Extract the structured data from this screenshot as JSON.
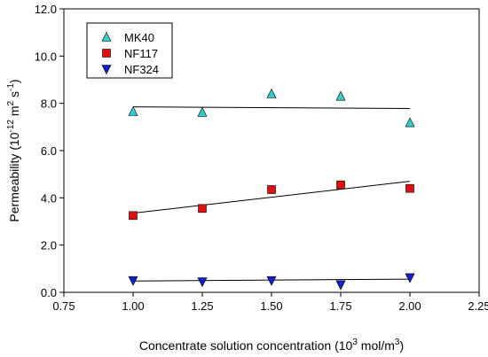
{
  "chart_data": {
    "type": "scatter",
    "xlabel": "Concentrate solution concentration (10",
    "xlabel_sup": "3",
    "xlabel_tail": " mol/m",
    "xlabel_sup2": "3",
    "xlabel_end": ")",
    "ylabel": "Permeability  (10",
    "ylabel_sup1": "-12",
    "ylabel_mid": " m",
    "ylabel_sup2": "2",
    "ylabel_mid2": " s",
    "ylabel_sup3": "-1",
    "ylabel_end": ")",
    "xlim": [
      0.75,
      2.25
    ],
    "ylim": [
      0.0,
      12.0
    ],
    "xticks": [
      0.75,
      1.0,
      1.25,
      1.5,
      1.75,
      2.0,
      2.25
    ],
    "xtick_labels": [
      "0.75",
      "1.00",
      "1.25",
      "1.50",
      "1.75",
      "2.00",
      "2.25"
    ],
    "yticks": [
      0,
      2,
      4,
      6,
      8,
      10,
      12
    ],
    "ytick_labels": [
      "0.0",
      "2.0",
      "4.0",
      "6.0",
      "8.0",
      "10.0",
      "12.0"
    ],
    "grid": false,
    "legend_position": "top-left",
    "series": [
      {
        "name": "MK40",
        "marker": "triangle-up",
        "color": "#33cccc",
        "x": [
          1.0,
          1.25,
          1.5,
          1.75,
          2.0
        ],
        "y": [
          7.65,
          7.62,
          8.4,
          8.3,
          7.18
        ],
        "fit": [
          [
            1.0,
            7.85
          ],
          [
            2.0,
            7.78
          ]
        ]
      },
      {
        "name": "NF117",
        "marker": "square",
        "color": "#dd1111",
        "x": [
          1.0,
          1.25,
          1.5,
          1.75,
          2.0
        ],
        "y": [
          3.25,
          3.55,
          4.35,
          4.55,
          4.4
        ],
        "fit": [
          [
            1.0,
            3.35
          ],
          [
            2.0,
            4.7
          ]
        ]
      },
      {
        "name": "NF324",
        "marker": "triangle-down",
        "color": "#1122cc",
        "x": [
          1.0,
          1.25,
          1.5,
          1.75,
          2.0
        ],
        "y": [
          0.5,
          0.45,
          0.5,
          0.32,
          0.62
        ],
        "fit": [
          [
            1.0,
            0.48
          ],
          [
            2.0,
            0.56
          ]
        ]
      }
    ]
  }
}
